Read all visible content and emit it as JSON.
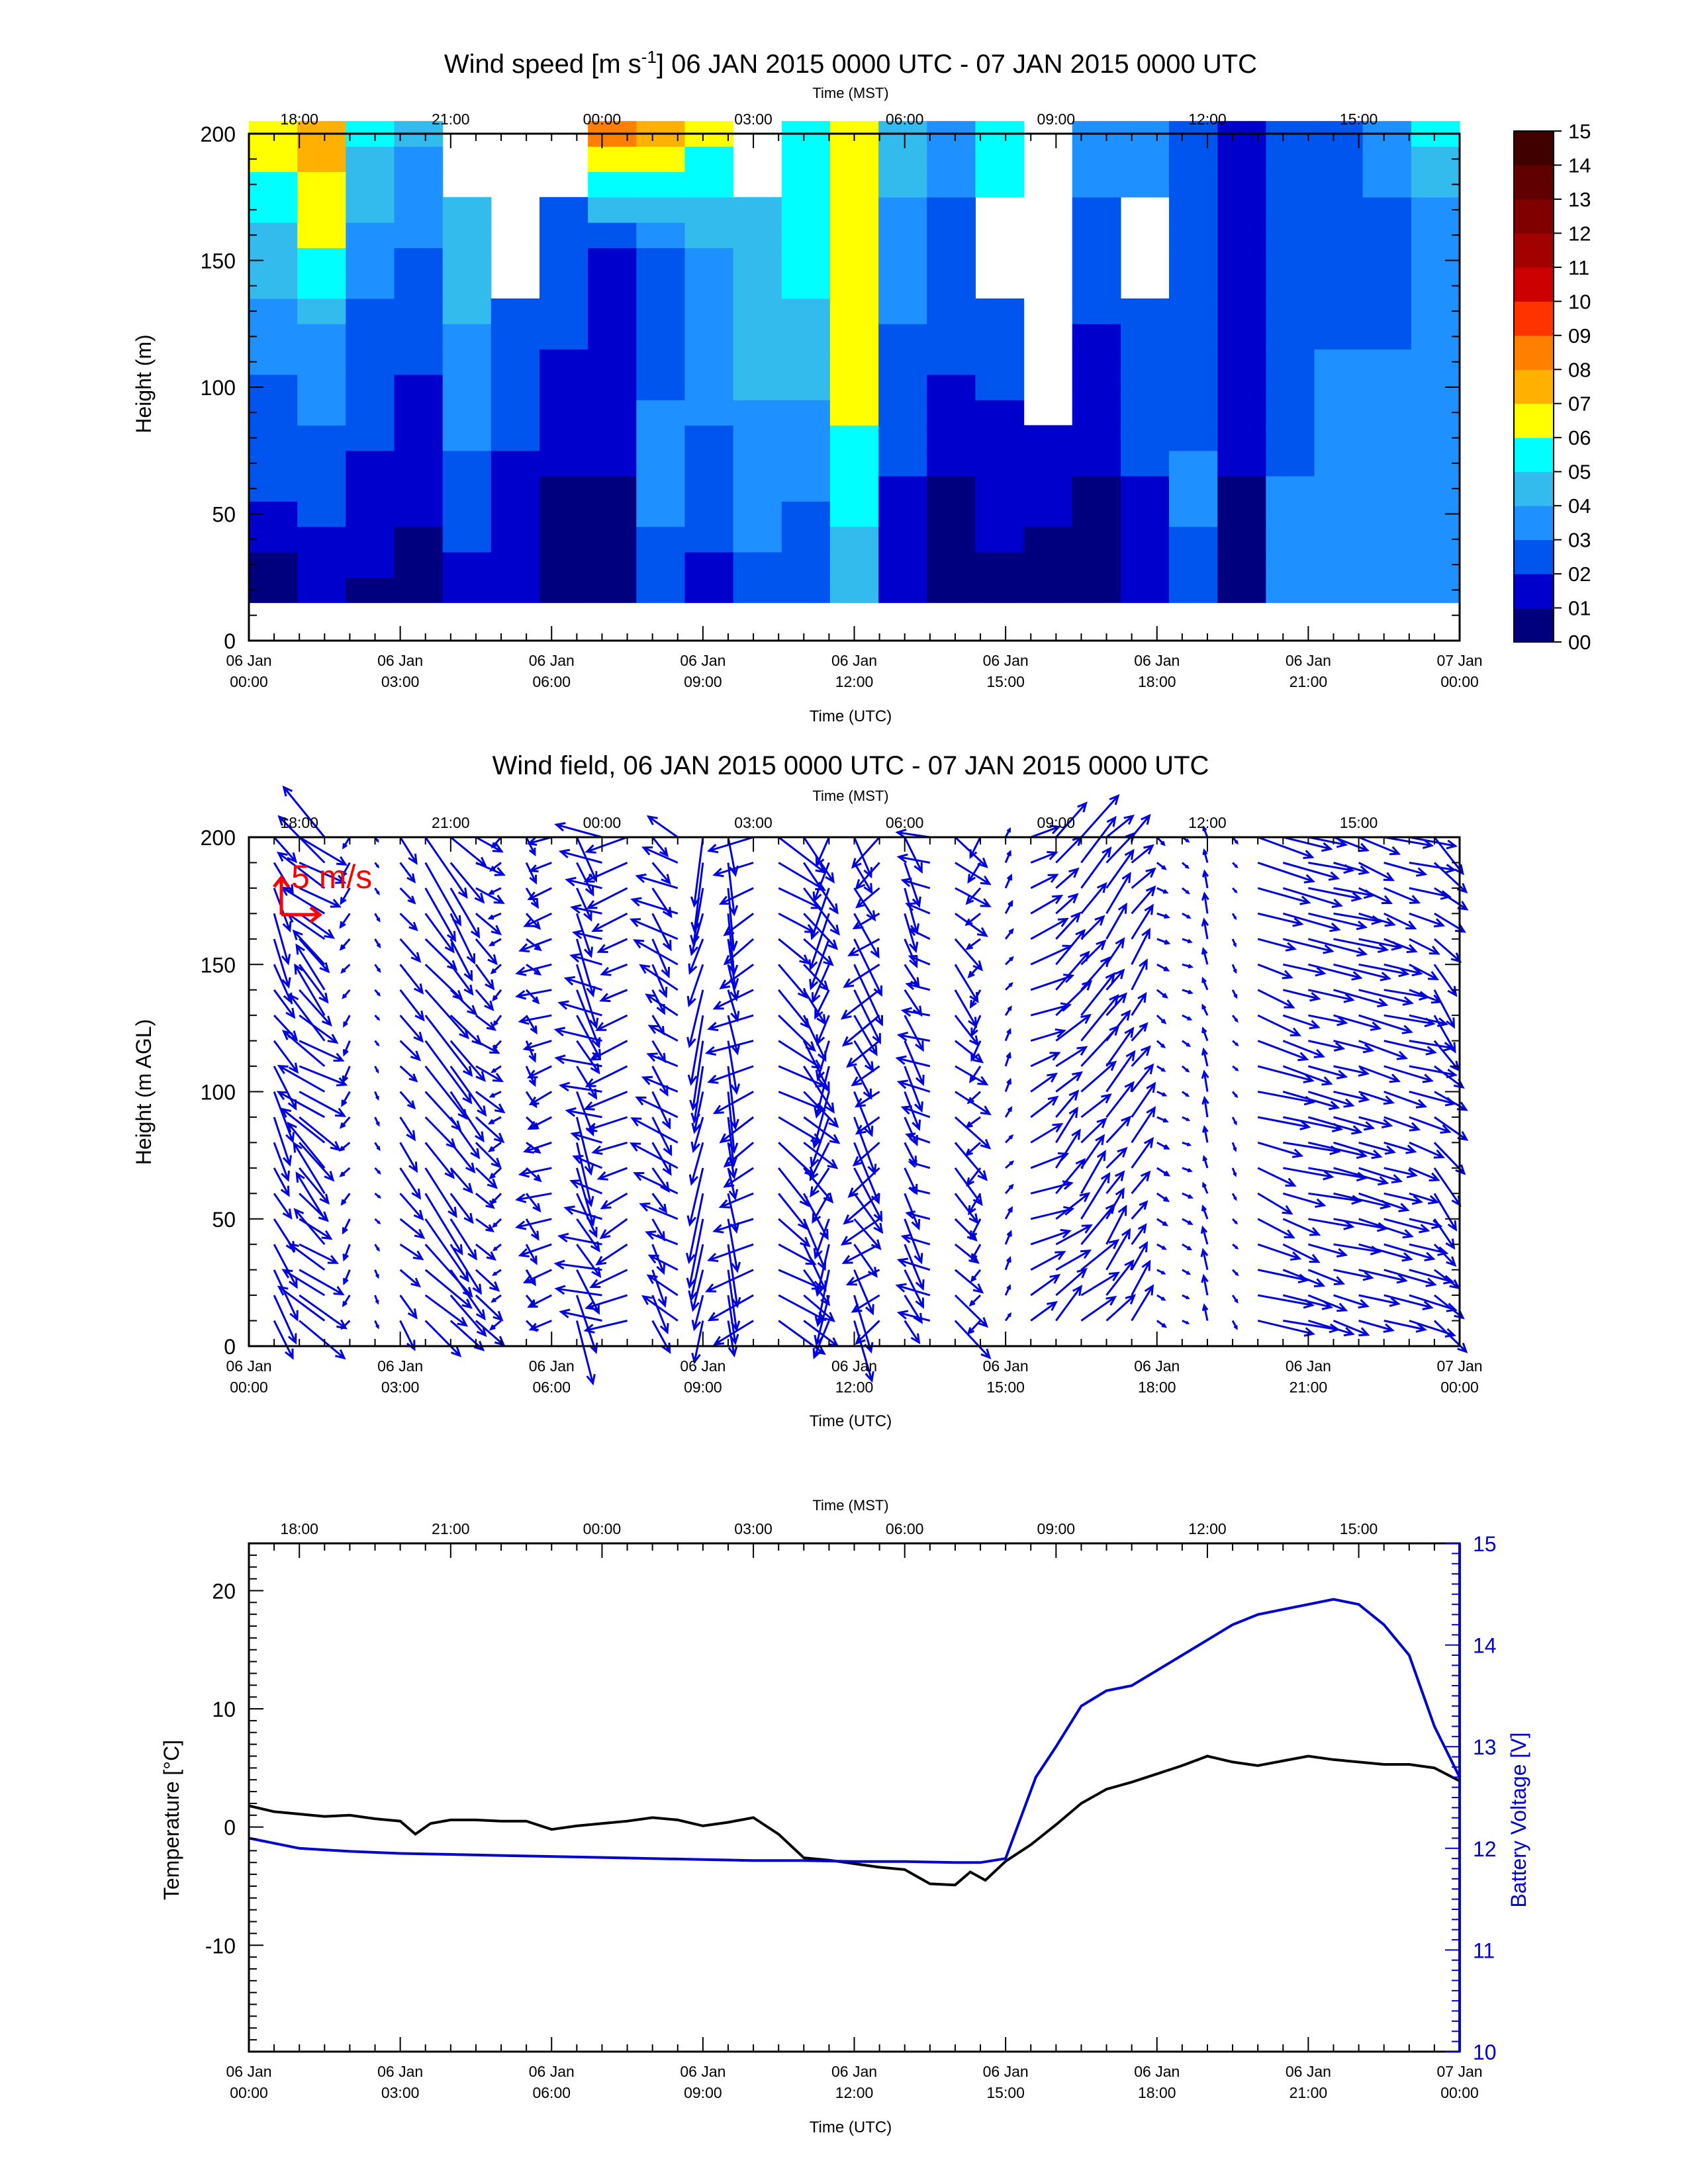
{
  "chart_data": [
    {
      "type": "heatmap",
      "title": "Wind speed [m s",
      "title_sup": "-1",
      "title_rest": "] 06 JAN 2015 0000 UTC - 07 JAN 2015 0000 UTC",
      "ylabel": "Height (m)",
      "ylim": [
        0,
        200
      ],
      "yticks": [
        "0",
        "50",
        "100",
        "150",
        "200"
      ],
      "top_axis_label": "Time (MST)",
      "top_ticks": [
        "18:00",
        "21:00",
        "00:00",
        "03:00",
        "06:00",
        "09:00",
        "12:00",
        "15:00"
      ],
      "bottom_axis_label": "Time (UTC)",
      "bottom_ticks": [
        [
          "06 Jan",
          "00:00"
        ],
        [
          "06 Jan",
          "03:00"
        ],
        [
          "06 Jan",
          "06:00"
        ],
        [
          "06 Jan",
          "09:00"
        ],
        [
          "06 Jan",
          "12:00"
        ],
        [
          "06 Jan",
          "15:00"
        ],
        [
          "06 Jan",
          "18:00"
        ],
        [
          "06 Jan",
          "21:00"
        ],
        [
          "07 Jan",
          "00:00"
        ]
      ],
      "colorbar_labels": [
        "00",
        "01",
        "02",
        "03",
        "04",
        "05",
        "06",
        "07",
        "08",
        "09",
        "10",
        "11",
        "12",
        "13",
        "14",
        "15"
      ],
      "colorbar_colors": [
        "#00007f",
        "#0000cc",
        "#0055ee",
        "#1e90ff",
        "#33bbee",
        "#00ffff",
        "#ffff00",
        "#ffb000",
        "#ff7f00",
        "#ff3300",
        "#cc0000",
        "#a30000",
        "#800000",
        "#600000",
        "#400000",
        "#200000"
      ],
      "column_profiles": [
        [
          0,
          2.6,
          3.0,
          4.5,
          6.5
        ],
        [
          1.0,
          2.8,
          3.3,
          6.0,
          7.5
        ],
        [
          0.8,
          1.8,
          2.5,
          3.5,
          5.0
        ],
        [
          0.6,
          1.2,
          2.0,
          3.0,
          4.0
        ],
        [
          1.4,
          2.8,
          3.6,
          4.5,
          -1
        ],
        [
          1.0,
          1.8,
          2.6,
          -1,
          -1
        ],
        [
          0.6,
          1.0,
          1.9,
          2.8,
          -1
        ],
        [
          0.5,
          1.0,
          1.4,
          2.0,
          8.0
        ],
        [
          2.5,
          3.4,
          2.8,
          3.0,
          7.5
        ],
        [
          1.8,
          2.5,
          3.5,
          4.0,
          6.0
        ],
        [
          2.6,
          3.5,
          4.2,
          4.5,
          -1
        ],
        [
          2.4,
          3.2,
          4.5,
          5.5,
          5.0
        ],
        [
          4.0,
          5.5,
          6.5,
          7.0,
          6.2
        ],
        [
          1.2,
          2.0,
          2.8,
          3.5,
          4.5
        ],
        [
          0.4,
          1.0,
          2.0,
          2.6,
          3.5
        ],
        [
          0.8,
          1.4,
          2.4,
          -1,
          5.5
        ],
        [
          0.6,
          1.2,
          -1,
          -1,
          -1
        ],
        [
          0.5,
          1.0,
          1.8,
          2.5,
          3.5
        ],
        [
          1.5,
          2.0,
          2.8,
          -1,
          3.0
        ],
        [
          2.8,
          3.2,
          2.4,
          2.0,
          2.5
        ],
        [
          0.5,
          1.0,
          1.2,
          1.5,
          1.8
        ],
        [
          3.2,
          3.0,
          2.8,
          2.5,
          2.0
        ],
        [
          3.6,
          3.4,
          3.0,
          2.6,
          2.2
        ],
        [
          3.6,
          3.2,
          3.0,
          2.8,
          3.2
        ],
        [
          3.8,
          3.4,
          3.2,
          3.0,
          5.5
        ]
      ]
    },
    {
      "type": "quiver",
      "title": "Wind field, 06 JAN 2015 0000 UTC - 07 JAN 2015 0000 UTC",
      "ylabel": "Height (m AGL)",
      "ylim": [
        0,
        200
      ],
      "yticks": [
        "0",
        "50",
        "100",
        "150",
        "200"
      ],
      "top_axis_label": "Time (MST)",
      "top_ticks": [
        "18:00",
        "21:00",
        "00:00",
        "03:00",
        "06:00",
        "09:00",
        "12:00",
        "15:00"
      ],
      "bottom_axis_label": "Time (UTC)",
      "bottom_ticks": [
        [
          "06 Jan",
          "00:00"
        ],
        [
          "06 Jan",
          "03:00"
        ],
        [
          "06 Jan",
          "06:00"
        ],
        [
          "06 Jan",
          "09:00"
        ],
        [
          "06 Jan",
          "12:00"
        ],
        [
          "06 Jan",
          "15:00"
        ],
        [
          "06 Jan",
          "18:00"
        ],
        [
          "06 Jan",
          "21:00"
        ],
        [
          "07 Jan",
          "00:00"
        ]
      ],
      "reference_label": "5 m/s",
      "reference_color": "#ff0000",
      "vector_color": "#0000dd",
      "heights": [
        10,
        20,
        30,
        40,
        50,
        60,
        70,
        80,
        90,
        100,
        110,
        120,
        130,
        140,
        150,
        160,
        170,
        180,
        190,
        200
      ],
      "column_regimes": [
        {
          "hours": 0.5,
          "u": 1.0,
          "v": -2.0
        },
        {
          "hours": 1.0,
          "u": 2.0,
          "v": -1.5
        },
        {
          "hours": 1.5,
          "u": -2.0,
          "v": 2.0
        },
        {
          "hours": 2.0,
          "u": -0.4,
          "v": -0.6
        },
        {
          "hours": 2.5,
          "u": 0.2,
          "v": -0.3
        },
        {
          "hours": 3.0,
          "u": 1.0,
          "v": -1.2
        },
        {
          "hours": 3.5,
          "u": 2.0,
          "v": -2.5
        },
        {
          "hours": 4.0,
          "u": 1.5,
          "v": -2.0
        },
        {
          "hours": 4.5,
          "u": 1.2,
          "v": -1.0
        },
        {
          "hours": 5.0,
          "u": -0.5,
          "v": -0.4
        },
        {
          "hours": 5.5,
          "u": 0.6,
          "v": -0.8
        },
        {
          "hours": 6.0,
          "u": -1.5,
          "v": -0.5
        },
        {
          "hours": 6.5,
          "u": 1.0,
          "v": -2.5
        },
        {
          "hours": 7.0,
          "u": -2.0,
          "v": 0.5
        },
        {
          "hours": 7.5,
          "u": -1.8,
          "v": -0.8
        },
        {
          "hours": 8.0,
          "u": 0.8,
          "v": -1.5
        },
        {
          "hours": 8.5,
          "u": -2.0,
          "v": 1.0
        },
        {
          "hours": 9.0,
          "u": -0.6,
          "v": -2.8
        },
        {
          "hours": 9.5,
          "u": 0.4,
          "v": -2.5
        },
        {
          "hours": 10.0,
          "u": -2.0,
          "v": -1.0
        },
        {
          "hours": 10.5,
          "u": 2.0,
          "v": -1.5
        },
        {
          "hours": 11.0,
          "u": 1.5,
          "v": -2.0
        },
        {
          "hours": 11.5,
          "u": -0.8,
          "v": -2.2
        },
        {
          "hours": 12.0,
          "u": 1.2,
          "v": -2.4
        },
        {
          "hours": 12.5,
          "u": -1.6,
          "v": -1.2
        },
        {
          "hours": 13.0,
          "u": 0.8,
          "v": -1.8
        },
        {
          "hours": 13.5,
          "u": -1.4,
          "v": 0.4
        },
        {
          "hours": 14.0,
          "u": 1.5,
          "v": -1.5
        },
        {
          "hours": 14.5,
          "u": -0.6,
          "v": -0.8
        },
        {
          "hours": 15.0,
          "u": 0.3,
          "v": 0.5
        },
        {
          "hours": 15.5,
          "u": 1.8,
          "v": 0.8
        },
        {
          "hours": 16.0,
          "u": 1.5,
          "v": 1.5
        },
        {
          "hours": 16.5,
          "u": 1.6,
          "v": 1.8
        },
        {
          "hours": 17.0,
          "u": 1.2,
          "v": 1.6
        },
        {
          "hours": 17.5,
          "u": 1.0,
          "v": 1.4
        },
        {
          "hours": 18.0,
          "u": 0.5,
          "v": -0.3
        },
        {
          "hours": 18.5,
          "u": 0.4,
          "v": -0.2
        },
        {
          "hours": 19.0,
          "u": -0.2,
          "v": 0.8
        },
        {
          "hours": 19.5,
          "u": 0.2,
          "v": -0.3
        },
        {
          "hours": 20.0,
          "u": 2.4,
          "v": -0.8
        },
        {
          "hours": 20.5,
          "u": 2.5,
          "v": -0.7
        },
        {
          "hours": 21.0,
          "u": 2.5,
          "v": -0.6
        },
        {
          "hours": 21.5,
          "u": 2.4,
          "v": -0.6
        },
        {
          "hours": 22.0,
          "u": 2.3,
          "v": -0.7
        },
        {
          "hours": 22.5,
          "u": 2.2,
          "v": -0.6
        },
        {
          "hours": 23.0,
          "u": 2.0,
          "v": -0.6
        },
        {
          "hours": 23.5,
          "u": 1.4,
          "v": -1.5
        }
      ]
    },
    {
      "type": "line",
      "title": "",
      "ylabel": "Temperature [°C]",
      "y2label": "Battery Voltage [V]",
      "ylim": [
        -19,
        24
      ],
      "y2lim": [
        10,
        15
      ],
      "yticks": [
        "-10",
        "0",
        "10",
        "20"
      ],
      "y2ticks": [
        "10",
        "11",
        "12",
        "13",
        "14",
        "15"
      ],
      "top_axis_label": "Time (MST)",
      "top_ticks": [
        "18:00",
        "21:00",
        "00:00",
        "03:00",
        "06:00",
        "09:00",
        "12:00",
        "15:00"
      ],
      "bottom_axis_label": "Time (UTC)",
      "bottom_ticks": [
        [
          "06 Jan",
          "00:00"
        ],
        [
          "06 Jan",
          "03:00"
        ],
        [
          "06 Jan",
          "06:00"
        ],
        [
          "06 Jan",
          "09:00"
        ],
        [
          "06 Jan",
          "12:00"
        ],
        [
          "06 Jan",
          "15:00"
        ],
        [
          "06 Jan",
          "18:00"
        ],
        [
          "06 Jan",
          "21:00"
        ],
        [
          "07 Jan",
          "00:00"
        ]
      ],
      "series": [
        {
          "color": "#000000",
          "axis": "left",
          "hours": [
            0,
            0.5,
            1,
            1.5,
            2,
            2.5,
            3,
            3.3,
            3.6,
            4,
            4.5,
            5,
            5.5,
            6,
            6.5,
            7,
            7.5,
            8,
            8.5,
            9,
            9.5,
            10,
            10.5,
            11,
            11.5,
            12,
            12.5,
            13,
            13.5,
            14,
            14.3,
            14.6,
            15,
            15.5,
            16,
            16.5,
            17,
            17.5,
            18,
            18.5,
            19,
            19.5,
            20,
            20.5,
            21,
            21.5,
            22,
            22.5,
            23,
            23.5,
            24
          ],
          "values": [
            1.8,
            1.3,
            1.1,
            0.9,
            1.0,
            0.7,
            0.5,
            -0.6,
            0.3,
            0.6,
            0.6,
            0.5,
            0.5,
            -0.2,
            0.1,
            0.3,
            0.5,
            0.8,
            0.6,
            0.1,
            0.4,
            0.8,
            -0.6,
            -2.6,
            -2.8,
            -3.1,
            -3.4,
            -3.6,
            -4.8,
            -4.9,
            -3.8,
            -4.5,
            -2.9,
            -1.5,
            0.2,
            2.0,
            3.2,
            3.8,
            4.5,
            5.2,
            6.0,
            5.5,
            5.2,
            5.6,
            6.0,
            5.7,
            5.5,
            5.3,
            5.3,
            5.0,
            3.9
          ]
        },
        {
          "color": "#0000cc",
          "axis": "right",
          "hours": [
            0,
            1,
            2,
            3,
            4,
            5,
            6,
            7,
            8,
            9,
            10,
            11,
            12,
            13,
            14,
            14.5,
            15,
            15.3,
            15.6,
            16,
            16.5,
            17,
            17.5,
            18,
            18.5,
            19,
            19.5,
            20,
            20.5,
            21,
            21.5,
            22,
            22.5,
            23,
            23.5,
            24
          ],
          "values": [
            12.1,
            12.0,
            11.97,
            11.95,
            11.94,
            11.93,
            11.92,
            11.91,
            11.9,
            11.89,
            11.88,
            11.88,
            11.87,
            11.87,
            11.86,
            11.86,
            11.9,
            12.3,
            12.7,
            13.0,
            13.4,
            13.55,
            13.6,
            13.75,
            13.9,
            14.05,
            14.2,
            14.3,
            14.35,
            14.4,
            14.45,
            14.4,
            14.2,
            13.9,
            13.2,
            12.7
          ]
        }
      ]
    }
  ]
}
